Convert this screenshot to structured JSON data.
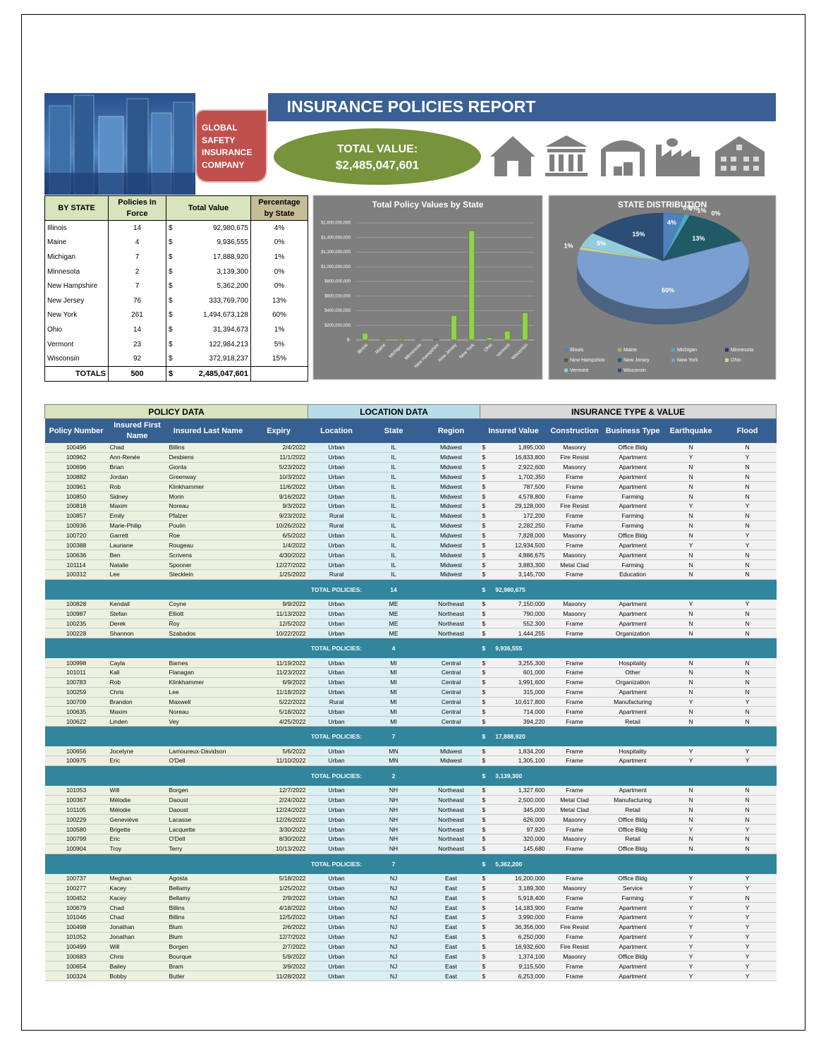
{
  "header": {
    "title": "INSURANCE POLICIES REPORT",
    "company": [
      "GLOBAL",
      "SAFETY",
      "INSURANCE",
      "COMPANY"
    ],
    "total_label": "TOTAL VALUE:",
    "total_value": "$2,485,047,601"
  },
  "summary": {
    "columns": [
      "BY STATE",
      "Policies In Force",
      "Total Value",
      "Percentage by State"
    ],
    "currency": "$",
    "rows": [
      [
        "Illinois",
        "14",
        "92,980,675",
        "4%"
      ],
      [
        "Maine",
        "4",
        "9,936,555",
        "0%"
      ],
      [
        "Michigan",
        "7",
        "17,888,920",
        "1%"
      ],
      [
        "Minnesota",
        "2",
        "3,139,300",
        "0%"
      ],
      [
        "New Hampshire",
        "7",
        "5,362,200",
        "0%"
      ],
      [
        "New Jersey",
        "76",
        "333,769,700",
        "13%"
      ],
      [
        "New York",
        "261",
        "1,494,673,128",
        "60%"
      ],
      [
        "Ohio",
        "14",
        "31,394,673",
        "1%"
      ],
      [
        "Vermont",
        "23",
        "122,984,213",
        "5%"
      ],
      [
        "Wisconsin",
        "92",
        "372,918,237",
        "15%"
      ]
    ],
    "totals": [
      "TOTALS",
      "500",
      "2,485,047,601"
    ]
  },
  "chart_data": [
    {
      "type": "bar",
      "title": "Total Policy Values by State",
      "categories": [
        "Illinois",
        "Maine",
        "Michigan",
        "Minnesota",
        "New Hampshire",
        "New Jersey",
        "New York",
        "Ohio",
        "Vermont",
        "Wisconsin"
      ],
      "values": [
        92980675,
        9936555,
        17888920,
        3139300,
        5362200,
        333769700,
        1494673128,
        31394673,
        122984213,
        372918237
      ],
      "color": "#92d050",
      "grid": true,
      "ylim": [
        0,
        1600000000
      ],
      "yticks": [
        {
          "value": 0,
          "label": "$-"
        },
        {
          "value": 200000000,
          "label": "$200,000,000"
        },
        {
          "value": 400000000,
          "label": "$400,000,000"
        },
        {
          "value": 600000000,
          "label": "$600,000,000"
        },
        {
          "value": 800000000,
          "label": "$800,000,000"
        },
        {
          "value": 1000000000,
          "label": "$1,000,000,000"
        },
        {
          "value": 1200000000,
          "label": "$1,200,000,000"
        },
        {
          "value": 1400000000,
          "label": "$1,400,000,000"
        },
        {
          "value": 1600000000,
          "label": "$1,600,000,000"
        }
      ]
    },
    {
      "type": "pie",
      "title": "STATE DISTRIBUTION",
      "categories": [
        "Illinois",
        "Maine",
        "Michigan",
        "Minnesota",
        "New Hampshire",
        "New Jersey",
        "New York",
        "Ohio",
        "Vermont",
        "Wisconsin"
      ],
      "values": [
        4,
        0,
        1,
        0,
        0,
        13,
        60,
        1,
        5,
        15
      ],
      "value_labels": [
        "4%",
        "0%",
        "1%",
        "0%",
        "0%",
        "13%",
        "60%",
        "1%",
        "5%",
        "15%"
      ],
      "colors": [
        "#4f81bd",
        "#9bbb59",
        "#4bacc6",
        "#1f3864",
        "#4f6228",
        "#215967",
        "#7b9fd0",
        "#c3d69b",
        "#93cddd",
        "#2c4d75"
      ],
      "legend": "bottom"
    }
  ],
  "policy_table": {
    "groups": [
      "POLICY DATA",
      "LOCATION DATA",
      "INSURANCE TYPE & VALUE"
    ],
    "columns": [
      "Policy Number",
      "Insured First Name",
      "Insured Last Name",
      "Expiry",
      "Location",
      "State",
      "Region",
      "Insured Value",
      "Construction",
      "Business Type",
      "Earthquake",
      "Flood"
    ],
    "currency": "$",
    "total_label": "TOTAL POLICIES:",
    "sections": [
      {
        "rows": [
          [
            "100496",
            "Chad",
            "Billins",
            "2/4/2022",
            "Urban",
            "IL",
            "Midwest",
            "1,895,000",
            "Masonry",
            "Office Bldg",
            "N",
            "N"
          ],
          [
            "100962",
            "Ann-Renée",
            "Desbiens",
            "11/1/2022",
            "Urban",
            "IL",
            "Midwest",
            "16,833,800",
            "Fire Resist",
            "Apartment",
            "Y",
            "Y"
          ],
          [
            "100696",
            "Brian",
            "Gionta",
            "5/23/2022",
            "Urban",
            "IL",
            "Midwest",
            "2,922,600",
            "Masonry",
            "Apartment",
            "N",
            "N"
          ],
          [
            "100882",
            "Jordan",
            "Greenway",
            "10/3/2022",
            "Urban",
            "IL",
            "Midwest",
            "1,702,350",
            "Frame",
            "Apartment",
            "N",
            "N"
          ],
          [
            "100961",
            "Rob",
            "Klinkhammer",
            "11/6/2022",
            "Urban",
            "IL",
            "Midwest",
            "787,500",
            "Frame",
            "Apartment",
            "N",
            "N"
          ],
          [
            "100850",
            "Sidney",
            "Morin",
            "9/16/2022",
            "Urban",
            "IL",
            "Midwest",
            "4,578,800",
            "Frame",
            "Farming",
            "N",
            "N"
          ],
          [
            "100818",
            "Maxim",
            "Noreau",
            "9/3/2022",
            "Urban",
            "IL",
            "Midwest",
            "29,128,000",
            "Fire Resist",
            "Apartment",
            "Y",
            "Y"
          ],
          [
            "100857",
            "Emily",
            "Pfalzer",
            "9/23/2022",
            "Rural",
            "IL",
            "Midwest",
            "172,200",
            "Frame",
            "Farming",
            "N",
            "N"
          ],
          [
            "100936",
            "Marie-Philip",
            "Poulin",
            "10/26/2022",
            "Rural",
            "IL",
            "Midwest",
            "2,282,250",
            "Frame",
            "Farming",
            "N",
            "N"
          ],
          [
            "100720",
            "Garrett",
            "Roe",
            "6/5/2022",
            "Urban",
            "IL",
            "Midwest",
            "7,828,000",
            "Masonry",
            "Office Bldg",
            "N",
            "Y"
          ],
          [
            "100388",
            "Lauriane",
            "Rougeau",
            "1/4/2022",
            "Urban",
            "IL",
            "Midwest",
            "12,934,500",
            "Frame",
            "Apartment",
            "Y",
            "Y"
          ],
          [
            "100636",
            "Ben",
            "Scrivens",
            "4/30/2022",
            "Urban",
            "IL",
            "Midwest",
            "4,886,675",
            "Masonry",
            "Apartment",
            "N",
            "N"
          ],
          [
            "101114",
            "Natalie",
            "Spooner",
            "12/27/2022",
            "Urban",
            "IL",
            "Midwest",
            "3,883,300",
            "Metal Clad",
            "Farming",
            "N",
            "N"
          ],
          [
            "100312",
            "Lee",
            "Stecklein",
            "1/25/2022",
            "Rural",
            "IL",
            "Midwest",
            "3,145,700",
            "Frame",
            "Education",
            "N",
            "N"
          ]
        ],
        "total_count": "14",
        "total_value": "92,980,675"
      },
      {
        "rows": [
          [
            "100828",
            "Kendall",
            "Coyne",
            "9/9/2022",
            "Urban",
            "ME",
            "Northeast",
            "7,150,000",
            "Masonry",
            "Apartment",
            "Y",
            "Y"
          ],
          [
            "100987",
            "Stefan",
            "Elliott",
            "11/13/2022",
            "Urban",
            "ME",
            "Northeast",
            "790,000",
            "Masonry",
            "Apartment",
            "N",
            "N"
          ],
          [
            "100235",
            "Derek",
            "Roy",
            "12/5/2022",
            "Urban",
            "ME",
            "Northeast",
            "552,300",
            "Frame",
            "Apartment",
            "N",
            "N"
          ],
          [
            "100228",
            "Shannon",
            "Szabados",
            "10/22/2022",
            "Urban",
            "ME",
            "Northeast",
            "1,444,255",
            "Frame",
            "Organization",
            "N",
            "N"
          ]
        ],
        "total_count": "4",
        "total_value": "9,936,555"
      },
      {
        "rows": [
          [
            "100998",
            "Cayla",
            "Barnes",
            "11/19/2022",
            "Urban",
            "MI",
            "Central",
            "3,255,300",
            "Frame",
            "Hospitality",
            "N",
            "N"
          ],
          [
            "101011",
            "Kali",
            "Flanagan",
            "11/23/2022",
            "Urban",
            "MI",
            "Central",
            "601,000",
            "Frame",
            "Other",
            "N",
            "N"
          ],
          [
            "100783",
            "Rob",
            "Klinkhammer",
            "6/9/2022",
            "Urban",
            "MI",
            "Central",
            "1,991,600",
            "Frame",
            "Organization",
            "N",
            "N"
          ],
          [
            "100259",
            "Chris",
            "Lee",
            "11/18/2022",
            "Urban",
            "MI",
            "Central",
            "315,000",
            "Frame",
            "Apartment",
            "N",
            "N"
          ],
          [
            "100709",
            "Brandon",
            "Maxwell",
            "5/22/2022",
            "Rural",
            "MI",
            "Central",
            "10,617,800",
            "Frame",
            "Manufacturing",
            "Y",
            "Y"
          ],
          [
            "100635",
            "Maxim",
            "Noreau",
            "5/18/2022",
            "Urban",
            "MI",
            "Central",
            "714,000",
            "Frame",
            "Apartment",
            "N",
            "N"
          ],
          [
            "100622",
            "Linden",
            "Vey",
            "4/25/2022",
            "Urban",
            "MI",
            "Central",
            "394,220",
            "Frame",
            "Retail",
            "N",
            "N"
          ]
        ],
        "total_count": "7",
        "total_value": "17,888,920"
      },
      {
        "rows": [
          [
            "100656",
            "Jocelyne",
            "Lamoureux-Davidson",
            "5/6/2022",
            "Urban",
            "MN",
            "Midwest",
            "1,834,200",
            "Frame",
            "Hospitality",
            "Y",
            "Y"
          ],
          [
            "100975",
            "Eric",
            "O'Dell",
            "11/10/2022",
            "Urban",
            "MN",
            "Midwest",
            "1,305,100",
            "Frame",
            "Apartment",
            "Y",
            "Y"
          ]
        ],
        "total_count": "2",
        "total_value": "3,139,300"
      },
      {
        "rows": [
          [
            "101053",
            "Will",
            "Borgen",
            "12/7/2022",
            "Urban",
            "NH",
            "Northeast",
            "1,327,600",
            "Frame",
            "Apartment",
            "N",
            "N"
          ],
          [
            "100367",
            "Mélodie",
            "Daoust",
            "2/24/2022",
            "Urban",
            "NH",
            "Northeast",
            "2,500,000",
            "Metal Clad",
            "Manufacturing",
            "N",
            "N"
          ],
          [
            "101105",
            "Mélodie",
            "Daoust",
            "12/24/2022",
            "Urban",
            "NH",
            "Northeast",
            "345,000",
            "Metal Clad",
            "Retail",
            "N",
            "N"
          ],
          [
            "100229",
            "Geneviève",
            "Lacasse",
            "12/26/2022",
            "Urban",
            "NH",
            "Northeast",
            "626,000",
            "Masonry",
            "Office Bldg",
            "N",
            "N"
          ],
          [
            "100580",
            "Brigette",
            "Lacquette",
            "3/30/2022",
            "Urban",
            "NH",
            "Northeast",
            "97,920",
            "Frame",
            "Office Bldg",
            "Y",
            "Y"
          ],
          [
            "100799",
            "Eric",
            "O'Dell",
            "8/30/2022",
            "Urban",
            "NH",
            "Northeast",
            "320,000",
            "Masonry",
            "Retail",
            "N",
            "N"
          ],
          [
            "100904",
            "Troy",
            "Terry",
            "10/13/2022",
            "Urban",
            "NH",
            "Northeast",
            "145,680",
            "Frame",
            "Office Bldg",
            "N",
            "N"
          ]
        ],
        "total_count": "7",
        "total_value": "5,362,200"
      },
      {
        "rows": [
          [
            "100737",
            "Meghan",
            "Agosta",
            "5/18/2022",
            "Urban",
            "NJ",
            "East",
            "16,200,000",
            "Frame",
            "Office Bldg",
            "Y",
            "Y"
          ],
          [
            "100277",
            "Kacey",
            "Bellamy",
            "1/25/2022",
            "Urban",
            "NJ",
            "East",
            "3,189,300",
            "Masonry",
            "Service",
            "Y",
            "Y"
          ],
          [
            "100452",
            "Kacey",
            "Bellamy",
            "2/9/2022",
            "Urban",
            "NJ",
            "East",
            "5,918,400",
            "Frame",
            "Farming",
            "Y",
            "N"
          ],
          [
            "100679",
            "Chad",
            "Billins",
            "4/18/2022",
            "Urban",
            "NJ",
            "East",
            "14,183,900",
            "Frame",
            "Apartment",
            "Y",
            "Y"
          ],
          [
            "101046",
            "Chad",
            "Billins",
            "12/5/2022",
            "Urban",
            "NJ",
            "East",
            "3,990,000",
            "Frame",
            "Apartment",
            "Y",
            "Y"
          ],
          [
            "100498",
            "Jonathan",
            "Blum",
            "2/6/2022",
            "Urban",
            "NJ",
            "East",
            "36,356,000",
            "Fire Resist",
            "Apartment",
            "Y",
            "Y"
          ],
          [
            "101052",
            "Jonathan",
            "Blum",
            "12/7/2022",
            "Urban",
            "NJ",
            "East",
            "6,250,000",
            "Frame",
            "Apartment",
            "Y",
            "Y"
          ],
          [
            "100499",
            "Will",
            "Borgen",
            "2/7/2022",
            "Urban",
            "NJ",
            "East",
            "16,932,600",
            "Fire Resist",
            "Apartment",
            "Y",
            "Y"
          ],
          [
            "100683",
            "Chris",
            "Bourque",
            "5/9/2022",
            "Urban",
            "NJ",
            "East",
            "1,374,100",
            "Masonry",
            "Office Bldg",
            "Y",
            "Y"
          ],
          [
            "100654",
            "Bailey",
            "Bram",
            "3/9/2022",
            "Urban",
            "NJ",
            "East",
            "9,115,500",
            "Frame",
            "Apartment",
            "Y",
            "Y"
          ],
          [
            "100324",
            "Bobby",
            "Butler",
            "11/28/2022",
            "Urban",
            "NJ",
            "East",
            "6,253,000",
            "Frame",
            "Apartment",
            "Y",
            "Y"
          ]
        ]
      }
    ]
  }
}
